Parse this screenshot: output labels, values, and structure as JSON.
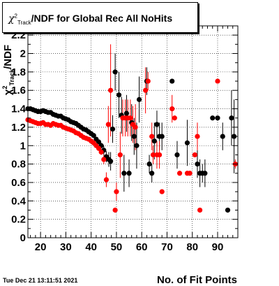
{
  "chart_data": {
    "type": "scatter",
    "title": "χ²_Track/NDF for Global Rec All NoHits",
    "title_parts": {
      "chi": "χ",
      "sup": "2",
      "sub": "Track",
      "rest": "/NDF for Global Rec All NoHits"
    },
    "xlabel": "No. of Fit Points",
    "ylabel": "χ²_Track/NDF",
    "ylabel_parts": {
      "chi": "χ",
      "sup": "2",
      "sub": "Track",
      "rest": "/NDF"
    },
    "xlim": [
      15,
      98
    ],
    "ylim": [
      0,
      2.3
    ],
    "x_ticks": [
      20,
      30,
      40,
      50,
      60,
      70,
      80,
      90
    ],
    "y_ticks": [
      0,
      0.2,
      0.4,
      0.6,
      0.8,
      1,
      1.2,
      1.4,
      1.6,
      1.8,
      2,
      2.2
    ],
    "x_tick_labels": [
      "20",
      "30",
      "40",
      "50",
      "60",
      "70",
      "80",
      "90"
    ],
    "y_tick_labels": [
      "0",
      "0.2",
      "0.4",
      "0.6",
      "0.8",
      "1",
      "1.2",
      "1.4",
      "1.6",
      "1.8",
      "2",
      "2.2"
    ],
    "grid": true,
    "series": [
      {
        "color": "#000000",
        "points": [
          [
            15,
            1.4,
            0
          ],
          [
            16,
            1.4,
            0
          ],
          [
            17,
            1.39,
            0
          ],
          [
            18,
            1.38,
            0
          ],
          [
            19,
            1.37,
            0
          ],
          [
            20,
            1.37,
            0
          ],
          [
            21,
            1.38,
            0
          ],
          [
            22,
            1.37,
            0
          ],
          [
            23,
            1.36,
            0
          ],
          [
            24,
            1.36,
            0
          ],
          [
            25,
            1.34,
            0
          ],
          [
            26,
            1.33,
            0
          ],
          [
            27,
            1.32,
            0
          ],
          [
            28,
            1.32,
            0
          ],
          [
            29,
            1.3,
            0
          ],
          [
            30,
            1.29,
            0
          ],
          [
            31,
            1.28,
            0
          ],
          [
            32,
            1.26,
            0
          ],
          [
            33,
            1.25,
            0
          ],
          [
            34,
            1.24,
            0
          ],
          [
            35,
            1.22,
            0
          ],
          [
            36,
            1.2,
            0
          ],
          [
            37,
            1.18,
            0
          ],
          [
            38,
            1.17,
            0
          ],
          [
            39,
            1.15,
            0
          ],
          [
            40,
            1.13,
            0
          ],
          [
            41,
            1.11,
            0
          ],
          [
            42,
            1.07,
            0
          ],
          [
            43,
            1.04,
            0
          ],
          [
            44,
            1.0,
            0.03
          ],
          [
            45,
            0.95,
            0.05
          ],
          [
            46,
            0.88,
            0.06
          ],
          [
            47,
            0.85,
            0.08
          ],
          [
            47.7,
            0.83,
            0.1
          ],
          [
            48.5,
            1.18,
            0.15
          ],
          [
            49.5,
            1.8,
            0.2
          ],
          [
            51,
            1.55,
            0.25
          ],
          [
            52,
            1.33,
            0.2
          ],
          [
            53,
            0.7,
            0.2
          ],
          [
            54,
            1.35,
            0.2
          ],
          [
            55,
            0.7,
            0.15
          ],
          [
            56,
            1.25,
            0.2
          ],
          [
            57,
            1.1,
            0.2
          ],
          [
            58,
            1.0,
            0.25
          ],
          [
            59,
            1.5,
            0.25
          ],
          [
            62,
            1.7,
            0.15
          ],
          [
            63,
            0.8,
            0.1
          ],
          [
            64,
            0.7,
            0.1
          ],
          [
            65,
            1.05,
            0.2
          ],
          [
            66,
            1.23,
            0.15
          ],
          [
            67,
            1.1,
            0.15
          ],
          [
            68,
            1.1,
            0.15
          ],
          [
            72,
            1.7,
            0
          ],
          [
            74,
            0.9,
            0.15
          ],
          [
            78,
            1.03,
            0.25
          ],
          [
            82,
            0.8,
            0.15
          ],
          [
            83,
            0.7,
            0.15
          ],
          [
            84,
            0.7,
            0.1
          ],
          [
            85,
            0.7,
            0.15
          ],
          [
            88,
            1.3,
            0
          ],
          [
            90,
            1.3,
            0
          ],
          [
            92,
            1.1,
            0.15
          ],
          [
            94,
            0.3,
            0
          ],
          [
            95.5,
            1.3,
            0.3
          ],
          [
            96.5,
            1.1,
            0.4
          ]
        ]
      },
      {
        "color": "#ff0000",
        "points": [
          [
            15,
            1.28,
            0
          ],
          [
            16,
            1.27,
            0
          ],
          [
            17,
            1.26,
            0
          ],
          [
            18,
            1.25,
            0
          ],
          [
            19,
            1.24,
            0
          ],
          [
            20,
            1.24,
            0
          ],
          [
            21,
            1.25,
            0
          ],
          [
            22,
            1.23,
            0
          ],
          [
            23,
            1.23,
            0
          ],
          [
            24,
            1.22,
            0
          ],
          [
            25,
            1.24,
            0
          ],
          [
            26,
            1.23,
            0
          ],
          [
            27,
            1.22,
            0
          ],
          [
            28,
            1.22,
            0
          ],
          [
            29,
            1.2,
            0
          ],
          [
            30,
            1.19,
            0
          ],
          [
            31,
            1.18,
            0
          ],
          [
            32,
            1.17,
            0
          ],
          [
            33,
            1.16,
            0
          ],
          [
            34,
            1.14,
            0
          ],
          [
            35,
            1.13,
            0
          ],
          [
            36,
            1.11,
            0
          ],
          [
            37,
            1.09,
            0
          ],
          [
            38,
            1.08,
            0
          ],
          [
            39,
            1.07,
            0
          ],
          [
            40,
            1.05,
            0
          ],
          [
            41,
            1.03,
            0
          ],
          [
            42,
            1.0,
            0
          ],
          [
            43,
            0.97,
            0
          ],
          [
            44,
            0.93,
            0.03
          ],
          [
            45,
            0.85,
            0.05
          ],
          [
            46,
            0.63,
            0.08
          ],
          [
            46.8,
            1.23,
            0.2
          ],
          [
            47.7,
            1.6,
            0.5
          ],
          [
            49.5,
            0.3,
            0
          ],
          [
            50,
            0.5,
            0.1
          ],
          [
            51.5,
            0.9,
            0.25
          ],
          [
            52.5,
            1.3,
            0.2
          ],
          [
            53.5,
            1.3,
            0.2
          ],
          [
            54.5,
            1.3,
            0.2
          ],
          [
            55.5,
            1.3,
            0.2
          ],
          [
            56.5,
            1.23,
            0.2
          ],
          [
            57.5,
            1.2,
            0.25
          ],
          [
            61.5,
            1.6,
            0.25
          ],
          [
            62.5,
            1.7,
            0.1
          ],
          [
            64,
            1.1,
            0.15
          ],
          [
            64.5,
            0.9,
            0.1
          ],
          [
            66,
            0.9,
            0.15
          ],
          [
            67,
            0.9,
            0.15
          ],
          [
            68,
            0.5,
            0
          ],
          [
            72,
            1.4,
            0.15
          ],
          [
            73,
            1.3,
            0
          ],
          [
            75,
            0.7,
            0
          ],
          [
            78,
            0.7,
            0
          ],
          [
            79,
            0.7,
            0
          ],
          [
            81,
            0.9,
            0
          ],
          [
            82,
            1.1,
            0.15
          ],
          [
            83,
            0.3,
            0
          ],
          [
            90,
            1.7,
            0
          ],
          [
            97,
            0.8,
            0.05
          ]
        ]
      }
    ]
  },
  "date_stamp": "Tue Dec 21 13:11:51 2021"
}
